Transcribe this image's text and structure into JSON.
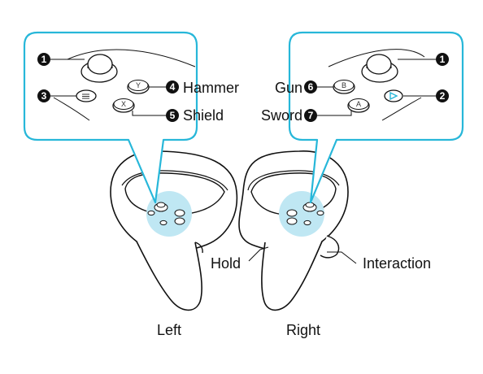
{
  "colors": {
    "callout_border": "#27b7d9",
    "highlight": "#bfe7f3",
    "marker_fill": "#111111",
    "marker_text": "#ffffff",
    "oculus_accent": "#27b7d9"
  },
  "left_controller": {
    "caption": "Left",
    "buttons": [
      {
        "number": "1",
        "part": "thumbstick",
        "icon": "thumbstick-icon",
        "label": ""
      },
      {
        "number": "3",
        "part": "menu-button",
        "icon": "menu-icon",
        "label": ""
      },
      {
        "number": "4",
        "part": "y-button",
        "icon": "y-button-icon",
        "glyph": "Y",
        "label": "Hammer"
      },
      {
        "number": "5",
        "part": "x-button",
        "icon": "x-button-icon",
        "glyph": "X",
        "label": "Shield"
      }
    ]
  },
  "right_controller": {
    "caption": "Right",
    "buttons": [
      {
        "number": "1",
        "part": "thumbstick",
        "icon": "thumbstick-icon",
        "label": ""
      },
      {
        "number": "2",
        "part": "oculus-button",
        "icon": "oculus-icon",
        "label": ""
      },
      {
        "number": "6",
        "part": "b-button",
        "icon": "b-button-icon",
        "glyph": "B",
        "label": "Gun"
      },
      {
        "number": "7",
        "part": "a-button",
        "icon": "a-button-icon",
        "glyph": "A",
        "label": "Sword"
      }
    ],
    "grip_label": "Hold",
    "trigger_label": "Interaction"
  }
}
